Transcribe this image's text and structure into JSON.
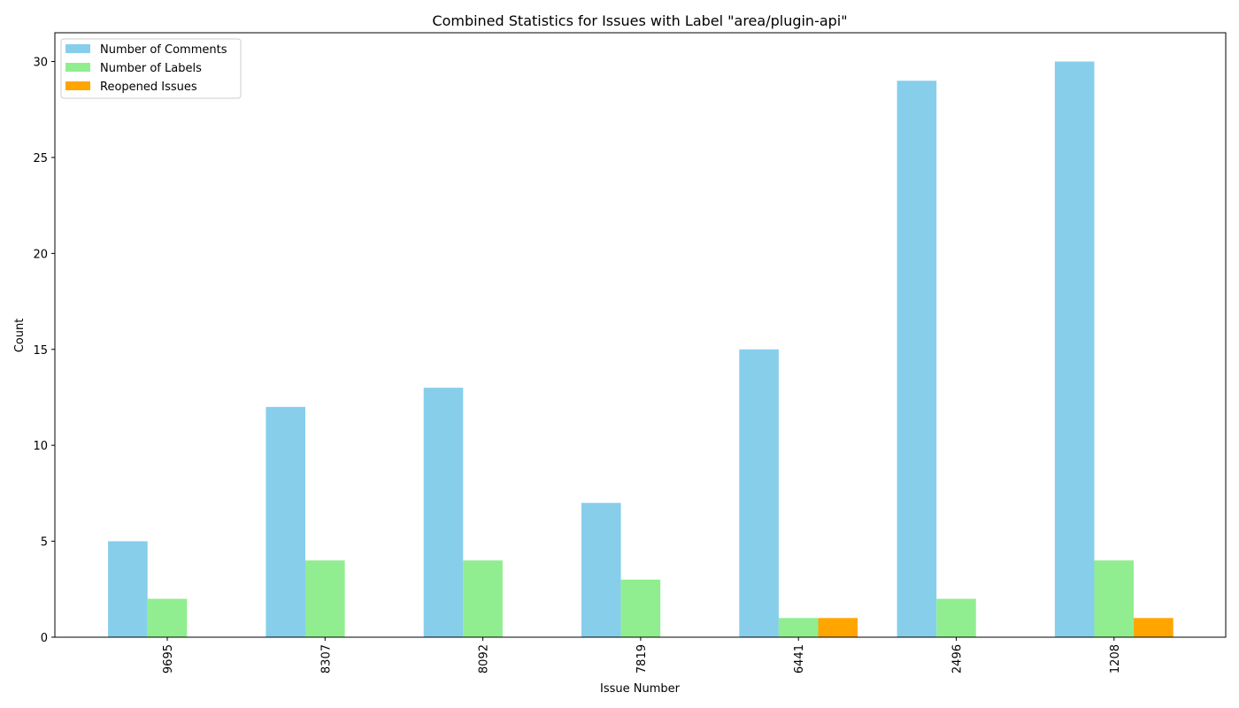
{
  "chart_data": {
    "type": "bar",
    "title": "Combined Statistics for Issues with Label \"area/plugin-api\"",
    "xlabel": "Issue Number",
    "ylabel": "Count",
    "categories": [
      "9695",
      "8307",
      "8092",
      "7819",
      "6441",
      "2496",
      "1208"
    ],
    "series": [
      {
        "name": "Number of Comments",
        "color": "#87ceeb",
        "values": [
          5,
          12,
          13,
          7,
          15,
          29,
          30
        ]
      },
      {
        "name": "Number of Labels",
        "color": "#90ee90",
        "values": [
          2,
          4,
          4,
          3,
          1,
          2,
          4
        ]
      },
      {
        "name": "Reopened Issues",
        "color": "#ffa500",
        "values": [
          0,
          0,
          0,
          0,
          1,
          0,
          1
        ]
      }
    ],
    "ylim": [
      0,
      31.5
    ],
    "yticks": [
      0,
      5,
      10,
      15,
      20,
      25,
      30
    ],
    "grid": false,
    "legend_position": "top-left",
    "xtick_rotation": "vertical"
  }
}
